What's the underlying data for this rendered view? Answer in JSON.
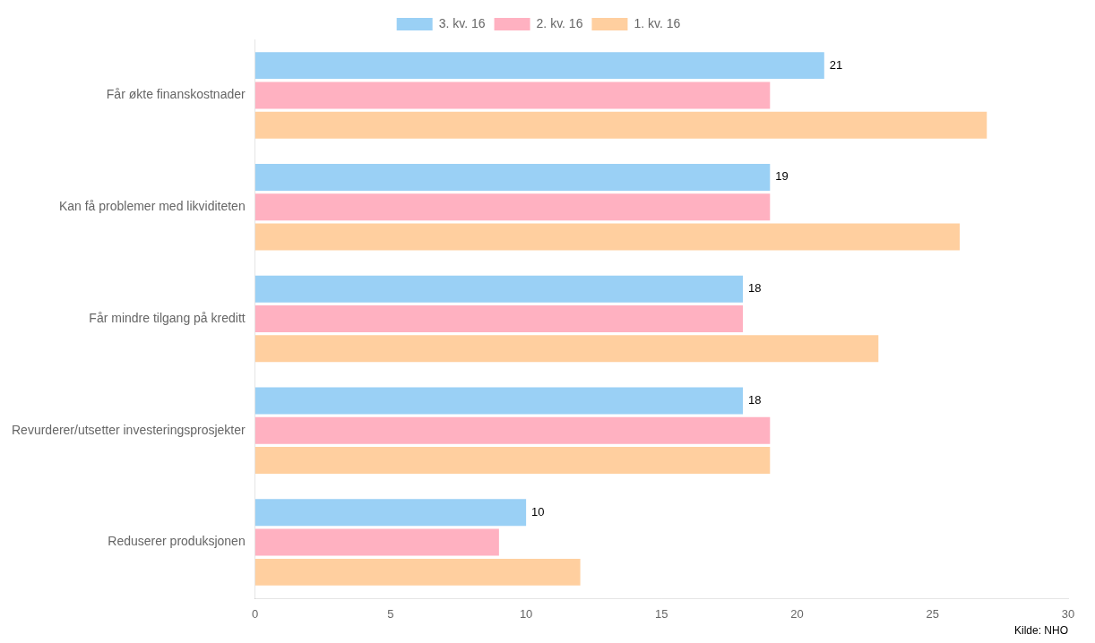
{
  "chart_data": {
    "type": "bar",
    "orientation": "horizontal",
    "categories": [
      "Får økte finanskostnader",
      "Kan få problemer med likviditeten",
      "Får mindre tilgang på kreditt",
      "Revurderer/utsetter investeringsprosjekter",
      "Reduserer produksjonen"
    ],
    "series": [
      {
        "name": "3. kv. 16",
        "values": [
          21,
          19,
          18,
          18,
          10
        ],
        "data_labels": true
      },
      {
        "name": "2. kv. 16",
        "values": [
          19,
          19,
          18,
          19,
          9
        ]
      },
      {
        "name": "1. kv. 16",
        "values": [
          27,
          26,
          23,
          19,
          12
        ]
      }
    ],
    "xlim": [
      0,
      30
    ],
    "xticks": [
      0,
      5,
      10,
      15,
      20,
      25,
      30
    ],
    "grid": false,
    "legend": "top",
    "annotations": [
      "Kilde: NHO"
    ]
  }
}
